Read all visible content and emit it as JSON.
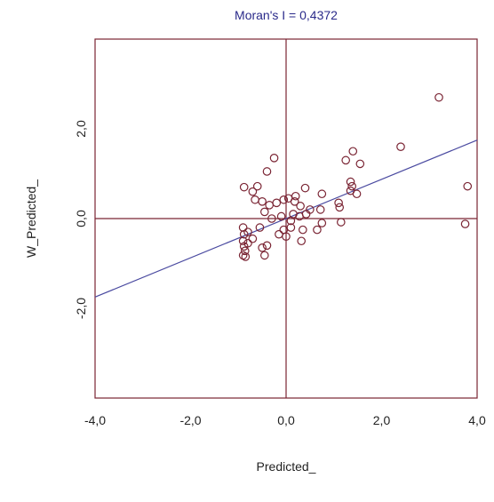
{
  "chart_data": {
    "type": "scatter",
    "title": "Moran's I = 0,4372",
    "xlabel": "Predicted_",
    "ylabel": "W_Predicted_",
    "xlim": [
      -4.0,
      4.0
    ],
    "ylim": [
      -4.0,
      4.0
    ],
    "x_ticks": [
      {
        "value": -4.0,
        "label": "-4,0"
      },
      {
        "value": -2.0,
        "label": "-2,0"
      },
      {
        "value": 0.0,
        "label": "0,0"
      },
      {
        "value": 2.0,
        "label": "2,0"
      },
      {
        "value": 4.0,
        "label": "4,0"
      }
    ],
    "y_ticks": [
      {
        "value": 2.0,
        "label": "2,0"
      },
      {
        "value": 0.0,
        "label": "0,0"
      },
      {
        "value": -2.0,
        "label": "-2,0"
      }
    ],
    "grid": false,
    "regression_line": {
      "slope": 0.4372,
      "intercept": 0.0
    },
    "colors": {
      "frame": "#7a2433",
      "points": "#7a2433",
      "regression": "#4a4aa0",
      "title": "#2a2a8a"
    },
    "points": [
      [
        3.2,
        2.7
      ],
      [
        3.8,
        0.72
      ],
      [
        3.75,
        -0.12
      ],
      [
        2.4,
        1.6
      ],
      [
        1.4,
        1.5
      ],
      [
        1.55,
        1.22
      ],
      [
        1.25,
        1.3
      ],
      [
        1.35,
        0.82
      ],
      [
        1.38,
        0.72
      ],
      [
        1.35,
        0.62
      ],
      [
        1.48,
        0.55
      ],
      [
        1.1,
        0.35
      ],
      [
        1.12,
        0.25
      ],
      [
        1.15,
        -0.08
      ],
      [
        0.75,
        0.55
      ],
      [
        0.72,
        0.2
      ],
      [
        0.75,
        -0.1
      ],
      [
        0.65,
        -0.25
      ],
      [
        0.4,
        0.68
      ],
      [
        0.5,
        0.2
      ],
      [
        0.42,
        0.1
      ],
      [
        0.3,
        0.28
      ],
      [
        0.28,
        0.05
      ],
      [
        0.35,
        -0.25
      ],
      [
        0.32,
        -0.5
      ],
      [
        0.2,
        0.5
      ],
      [
        0.18,
        0.38
      ],
      [
        0.15,
        0.1
      ],
      [
        0.1,
        -0.05
      ],
      [
        0.05,
        0.45
      ],
      [
        0.1,
        -0.2
      ],
      [
        -0.05,
        0.42
      ],
      [
        -0.1,
        0.05
      ],
      [
        -0.05,
        -0.25
      ],
      [
        -0.15,
        -0.35
      ],
      [
        0.0,
        -0.4
      ],
      [
        -0.25,
        1.35
      ],
      [
        -0.4,
        1.05
      ],
      [
        -0.2,
        0.35
      ],
      [
        -0.35,
        0.3
      ],
      [
        -0.45,
        0.15
      ],
      [
        -0.3,
        0.0
      ],
      [
        -0.5,
        0.38
      ],
      [
        -0.6,
        0.72
      ],
      [
        -0.7,
        0.6
      ],
      [
        -0.65,
        0.42
      ],
      [
        -0.55,
        -0.2
      ],
      [
        -0.4,
        -0.6
      ],
      [
        -0.5,
        -0.65
      ],
      [
        -0.45,
        -0.82
      ],
      [
        -0.7,
        -0.45
      ],
      [
        -0.8,
        -0.3
      ],
      [
        -0.88,
        0.7
      ],
      [
        -0.9,
        -0.2
      ],
      [
        -0.88,
        -0.35
      ],
      [
        -0.9,
        -0.5
      ],
      [
        -0.88,
        -0.62
      ],
      [
        -0.86,
        -0.72
      ],
      [
        -0.9,
        -0.82
      ],
      [
        -0.85,
        -0.85
      ],
      [
        -0.8,
        -0.55
      ]
    ]
  }
}
